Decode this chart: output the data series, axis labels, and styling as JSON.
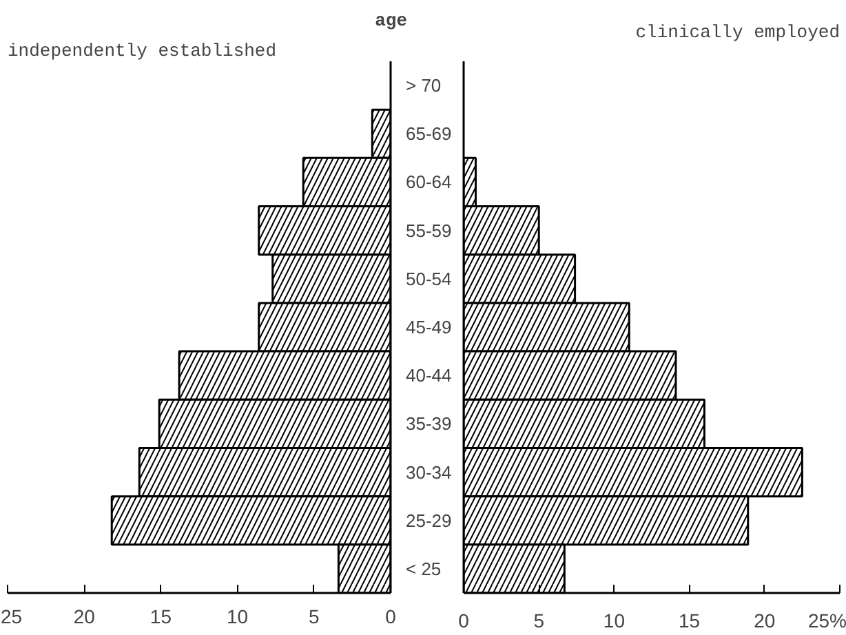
{
  "chart_data": [
    {
      "type": "bar",
      "orientation": "horizontal",
      "title": "independently established",
      "ylabel": "age",
      "categories": [
        "> 70",
        "65-69",
        "60-64",
        "55-59",
        "50-54",
        "45-49",
        "40-44",
        "35-39",
        "30-34",
        "25-29",
        "< 25"
      ],
      "values": [
        0,
        1.2,
        5.7,
        8.6,
        7.7,
        8.6,
        13.8,
        15.1,
        16.4,
        18.2,
        3.4
      ],
      "color": "#ffffff",
      "xlim": [
        25,
        0
      ],
      "xticks": [
        25,
        20,
        15,
        10,
        5,
        0
      ],
      "grid": false
    },
    {
      "type": "bar",
      "orientation": "horizontal",
      "title": "clinically employed",
      "values": [
        0,
        0,
        0.8,
        5.0,
        7.4,
        11.0,
        14.1,
        16.0,
        22.5,
        18.9,
        6.7
      ],
      "color": "#ffffff",
      "xlim": [
        0,
        25
      ],
      "xticks": [
        0,
        5,
        10,
        15,
        20,
        {
          "value": 25,
          "label": "25%"
        }
      ],
      "grid": false,
      "tick_labels": "x"
    }
  ]
}
